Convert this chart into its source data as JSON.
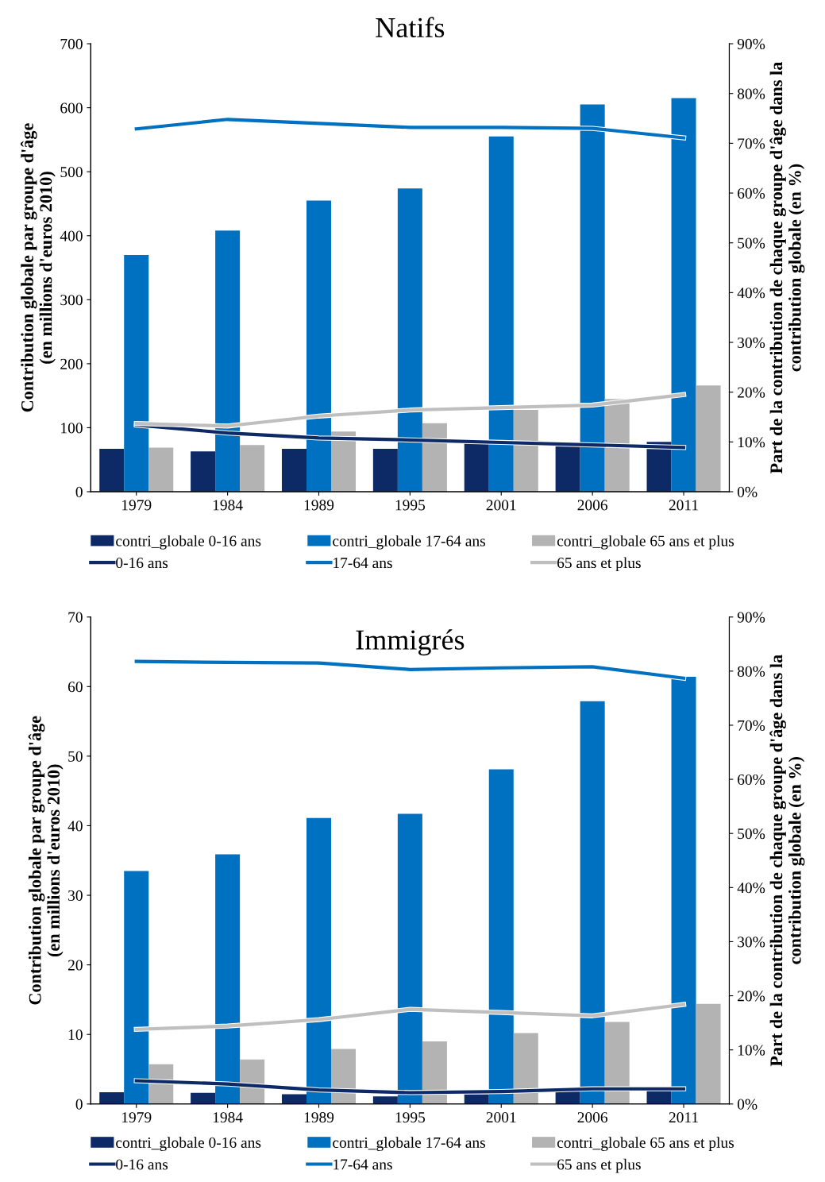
{
  "chart_data": [
    {
      "type": "bar",
      "title": "Natifs",
      "ylabel": "Contribution globale par groupe d'âge\n(en millions d'euros 2010)",
      "y2label": "Part de la contribution de chaque groupe d'âge dans la\ncontribution globale (en %)",
      "categories": [
        "1979",
        "1984",
        "1989",
        "1995",
        "2001",
        "2006",
        "2011"
      ],
      "ylim": [
        0,
        700
      ],
      "yticks": [
        0,
        100,
        200,
        300,
        400,
        500,
        600,
        700
      ],
      "y2lim": [
        0,
        90
      ],
      "y2ticks": [
        {
          "value": 0,
          "label": "0%"
        },
        {
          "value": 10,
          "label": "10%"
        },
        {
          "value": 20,
          "label": "20%"
        },
        {
          "value": 30,
          "label": "30%"
        },
        {
          "value": 40,
          "label": "40%"
        },
        {
          "value": 50,
          "label": "50%"
        },
        {
          "value": 60,
          "label": "60%"
        },
        {
          "value": 70,
          "label": "70%"
        },
        {
          "value": 80,
          "label": "80%"
        },
        {
          "value": 90,
          "label": "90%"
        }
      ],
      "legend": "bottom",
      "grid": false,
      "series": [
        {
          "name": "contri_globale 0-16 ans",
          "color": "#0e2a66",
          "values": [
            67,
            63,
            67,
            67,
            77,
            77,
            78
          ]
        },
        {
          "name": "contri_globale 17-64 ans",
          "color": "#0070c0",
          "values": [
            370,
            408,
            455,
            474,
            555,
            605,
            615
          ]
        },
        {
          "name": "contri_globale 65 ans et plus",
          "color": "#b3b3b3",
          "values": [
            69,
            73,
            94,
            107,
            128,
            145,
            166
          ]
        },
        {
          "name": "0-16 ans",
          "type": "line",
          "axis": "y2",
          "color": "#0e2a66",
          "values": [
            13.4,
            11.8,
            10.8,
            10.4,
            9.9,
            9.4,
            8.9
          ]
        },
        {
          "name": "17-64 ans",
          "type": "line",
          "axis": "y2",
          "color": "#0070c0",
          "values": [
            72.9,
            74.8,
            74.0,
            73.2,
            73.2,
            73.0,
            71.1
          ]
        },
        {
          "name": "65 ans et plus",
          "type": "line",
          "axis": "y2",
          "color": "#bfbfbf",
          "values": [
            13.7,
            13.2,
            15.2,
            16.4,
            16.9,
            17.4,
            19.5
          ]
        }
      ]
    },
    {
      "type": "bar",
      "title": "Immigrés",
      "ylabel": "Contribution globale par groupe d'âge\n(en millions d'euros 2010)",
      "y2label": "Part de la contribution de chaque groupe d'âge dans la\ncontribution globale (en %)",
      "categories": [
        "1979",
        "1984",
        "1989",
        "1995",
        "2001",
        "2006",
        "2011"
      ],
      "ylim": [
        0,
        70
      ],
      "yticks": [
        0,
        10,
        20,
        30,
        40,
        50,
        60,
        70
      ],
      "y2lim": [
        0,
        90
      ],
      "y2ticks": [
        {
          "value": 0,
          "label": "0%"
        },
        {
          "value": 10,
          "label": "10%"
        },
        {
          "value": 20,
          "label": "20%"
        },
        {
          "value": 30,
          "label": "30%"
        },
        {
          "value": 40,
          "label": "40%"
        },
        {
          "value": 50,
          "label": "50%"
        },
        {
          "value": 60,
          "label": "60%"
        },
        {
          "value": 70,
          "label": "70%"
        },
        {
          "value": 80,
          "label": "80%"
        },
        {
          "value": 90,
          "label": "90%"
        }
      ],
      "legend": "bottom",
      "grid": false,
      "series": [
        {
          "name": "contri_globale 0-16 ans",
          "color": "#0e2a66",
          "values": [
            1.7,
            1.6,
            1.4,
            1.1,
            1.4,
            1.9,
            2.1
          ]
        },
        {
          "name": "contri_globale 17-64 ans",
          "color": "#0070c0",
          "values": [
            33.5,
            35.9,
            41.1,
            41.7,
            48.1,
            57.9,
            61.4
          ]
        },
        {
          "name": "contri_globale 65 ans et plus",
          "color": "#b3b3b3",
          "values": [
            5.7,
            6.4,
            7.9,
            9.0,
            10.2,
            11.8,
            14.4
          ]
        },
        {
          "name": "0-16 ans",
          "type": "line",
          "axis": "y2",
          "color": "#0e2a66",
          "values": [
            4.3,
            3.7,
            2.6,
            2.1,
            2.3,
            2.8,
            2.8
          ]
        },
        {
          "name": "17-64 ans",
          "type": "line",
          "axis": "y2",
          "color": "#0070c0",
          "values": [
            81.8,
            81.6,
            81.5,
            80.3,
            80.6,
            80.8,
            78.7
          ]
        },
        {
          "name": "65 ans et plus",
          "type": "line",
          "axis": "y2",
          "color": "#bfbfbf",
          "values": [
            13.8,
            14.4,
            15.6,
            17.5,
            16.9,
            16.3,
            18.4
          ]
        }
      ]
    }
  ]
}
